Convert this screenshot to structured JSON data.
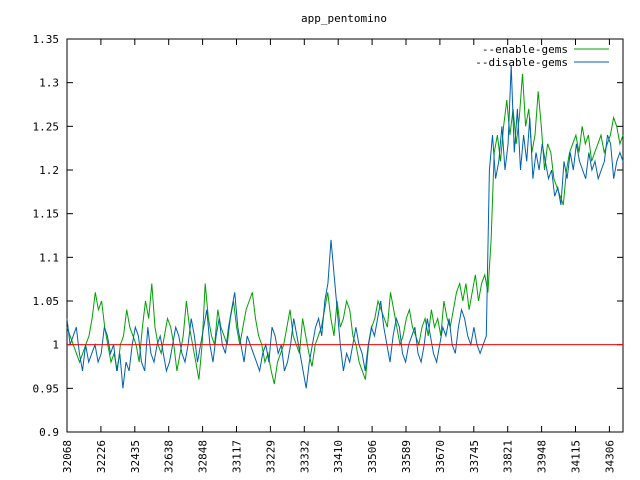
{
  "chart_data": {
    "type": "line",
    "title": "app_pentomino",
    "xlabel": "",
    "ylabel": "",
    "ylim": [
      0.9,
      1.35
    ],
    "yticks": [
      "0.9",
      "0.95",
      "1",
      "1.05",
      "1.1",
      "1.15",
      "1.2",
      "1.25",
      "1.3",
      "1.35"
    ],
    "xtick_labels": [
      "32068",
      "32226",
      "32435",
      "32638",
      "32848",
      "33117",
      "33229",
      "33332",
      "33410",
      "33506",
      "33589",
      "33670",
      "33745",
      "33821",
      "33948",
      "34115",
      "34306"
    ],
    "grid": false,
    "legend_position": "top-right",
    "baseline": {
      "value": 1.0,
      "color": "#ff0000"
    },
    "series": [
      {
        "name": "--enable-gems",
        "color": "#00a000",
        "values": [
          1.02,
          1.01,
          1.0,
          0.99,
          0.98,
          0.99,
          1.0,
          1.01,
          1.03,
          1.06,
          1.04,
          1.05,
          1.02,
          1.0,
          0.98,
          0.99,
          0.97,
          1.0,
          1.01,
          1.04,
          1.02,
          1.01,
          1.0,
          0.98,
          1.02,
          1.05,
          1.03,
          1.07,
          1.02,
          1.0,
          0.99,
          1.01,
          1.03,
          1.02,
          1.0,
          0.97,
          0.99,
          1.01,
          1.05,
          1.02,
          1.0,
          0.98,
          0.96,
          1.0,
          1.07,
          1.03,
          1.01,
          1.0,
          1.04,
          1.02,
          1.01,
          1.0,
          1.03,
          1.05,
          1.02,
          1.0,
          1.02,
          1.04,
          1.05,
          1.06,
          1.03,
          1.01,
          1.0,
          0.98,
          0.99,
          0.97,
          0.955,
          0.98,
          0.99,
          1.0,
          1.02,
          1.04,
          1.01,
          1.0,
          0.99,
          1.03,
          1.01,
          0.99,
          0.975,
          1.0,
          1.01,
          1.02,
          1.04,
          1.06,
          1.03,
          1.01,
          1.05,
          1.02,
          1.03,
          1.05,
          1.04,
          1.01,
          1.0,
          0.98,
          0.97,
          0.96,
          1.0,
          1.02,
          1.03,
          1.05,
          1.04,
          1.03,
          1.02,
          1.06,
          1.04,
          1.02,
          1.0,
          1.01,
          1.03,
          1.04,
          1.02,
          1.01,
          1.0,
          1.02,
          1.03,
          1.01,
          1.04,
          1.02,
          1.03,
          1.01,
          1.05,
          1.03,
          1.02,
          1.04,
          1.06,
          1.07,
          1.05,
          1.07,
          1.04,
          1.06,
          1.08,
          1.05,
          1.07,
          1.08,
          1.06,
          1.12,
          1.22,
          1.24,
          1.21,
          1.25,
          1.28,
          1.24,
          1.27,
          1.23,
          1.26,
          1.31,
          1.25,
          1.27,
          1.22,
          1.24,
          1.29,
          1.25,
          1.2,
          1.23,
          1.22,
          1.19,
          1.18,
          1.17,
          1.16,
          1.2,
          1.22,
          1.23,
          1.24,
          1.22,
          1.25,
          1.23,
          1.24,
          1.21,
          1.22,
          1.23,
          1.24,
          1.22,
          1.23,
          1.24,
          1.26,
          1.25,
          1.23,
          1.24
        ]
      },
      {
        "name": "--disable-gems",
        "color": "#0060b0",
        "values": [
          1.03,
          1.0,
          1.01,
          1.02,
          0.99,
          0.97,
          1.0,
          0.98,
          0.99,
          1.0,
          0.98,
          0.99,
          1.02,
          1.01,
          0.99,
          1.0,
          0.97,
          0.99,
          0.95,
          0.98,
          0.97,
          1.0,
          1.02,
          1.01,
          0.98,
          0.97,
          1.02,
          0.99,
          0.98,
          1.0,
          1.01,
          0.99,
          0.97,
          0.98,
          1.0,
          1.02,
          1.01,
          0.99,
          0.98,
          1.0,
          1.03,
          1.01,
          0.98,
          1.0,
          1.02,
          1.04,
          1.0,
          0.98,
          1.01,
          1.03,
          1.0,
          0.99,
          1.02,
          1.04,
          1.06,
          1.02,
          1.0,
          0.98,
          1.01,
          1.0,
          0.99,
          0.98,
          0.97,
          0.99,
          1.0,
          0.98,
          1.02,
          1.01,
          0.99,
          1.0,
          0.97,
          0.98,
          1.0,
          1.03,
          1.01,
          0.99,
          0.97,
          0.95,
          0.98,
          1.0,
          1.02,
          1.03,
          1.01,
          1.05,
          1.07,
          1.12,
          1.08,
          1.04,
          1.0,
          0.97,
          0.99,
          0.98,
          1.0,
          1.02,
          1.0,
          0.99,
          0.97,
          1.0,
          1.02,
          1.01,
          1.03,
          1.05,
          1.02,
          1.0,
          0.98,
          1.01,
          1.03,
          1.02,
          0.99,
          0.98,
          1.0,
          1.01,
          1.02,
          0.99,
          0.98,
          1.0,
          1.03,
          1.01,
          0.99,
          0.98,
          1.0,
          1.02,
          1.01,
          1.03,
          1.0,
          0.99,
          1.02,
          1.04,
          1.03,
          1.01,
          1.0,
          1.02,
          1.0,
          0.99,
          1.0,
          1.01,
          1.2,
          1.24,
          1.19,
          1.21,
          1.25,
          1.2,
          1.23,
          1.32,
          1.22,
          1.27,
          1.2,
          1.24,
          1.21,
          1.26,
          1.19,
          1.22,
          1.2,
          1.23,
          1.21,
          1.19,
          1.2,
          1.17,
          1.18,
          1.16,
          1.21,
          1.19,
          1.22,
          1.2,
          1.23,
          1.21,
          1.2,
          1.19,
          1.22,
          1.2,
          1.21,
          1.19,
          1.2,
          1.21,
          1.24,
          1.23,
          1.19,
          1.21,
          1.22,
          1.21
        ]
      }
    ]
  }
}
